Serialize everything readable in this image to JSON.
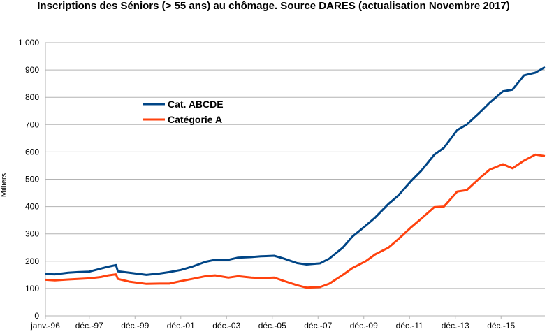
{
  "chart_data": {
    "type": "line",
    "title": "Inscriptions des Séniors (> 55 ans) au chômage. Source DARES (actualisation Novembre 2017)",
    "xlabel": "",
    "ylabel": "Milliers",
    "ylim": [
      0,
      1000
    ],
    "yticks": [
      "0",
      "100",
      "200",
      "300",
      "400",
      "500",
      "600",
      "700",
      "800",
      "900",
      "1 000"
    ],
    "yvalues": [
      0,
      100,
      200,
      300,
      400,
      500,
      600,
      700,
      800,
      900,
      1000
    ],
    "xlim": [
      "1996-01",
      "2017-11"
    ],
    "xticks": [
      {
        "label": "janv.-96",
        "date": "1996-01"
      },
      {
        "label": "déc.-97",
        "date": "1997-12"
      },
      {
        "label": "déc.-99",
        "date": "1999-12"
      },
      {
        "label": "déc.-01",
        "date": "2001-12"
      },
      {
        "label": "déc.-03",
        "date": "2003-12"
      },
      {
        "label": "déc.-05",
        "date": "2005-12"
      },
      {
        "label": "déc.-07",
        "date": "2007-12"
      },
      {
        "label": "déc.-09",
        "date": "2009-12"
      },
      {
        "label": "déc.-11",
        "date": "2011-12"
      },
      {
        "label": "déc.-13",
        "date": "2013-12"
      },
      {
        "label": "déc.-15",
        "date": "2015-12"
      }
    ],
    "grid": "horizontal",
    "legend_position": "upper-left inside",
    "series": [
      {
        "name": "Cat. ABCDE",
        "color": "#004586",
        "points": [
          [
            "1996-01",
            153
          ],
          [
            "1996-06",
            152
          ],
          [
            "1997-01",
            158
          ],
          [
            "1997-06",
            160
          ],
          [
            "1997-12",
            162
          ],
          [
            "1998-06",
            173
          ],
          [
            "1998-10",
            180
          ],
          [
            "1999-02",
            186
          ],
          [
            "1999-03",
            163
          ],
          [
            "1999-09",
            158
          ],
          [
            "2000-06",
            150
          ],
          [
            "2001-01",
            155
          ],
          [
            "2001-06",
            160
          ],
          [
            "2001-12",
            168
          ],
          [
            "2002-06",
            180
          ],
          [
            "2003-01",
            198
          ],
          [
            "2003-06",
            205
          ],
          [
            "2004-01",
            205
          ],
          [
            "2004-06",
            213
          ],
          [
            "2005-01",
            215
          ],
          [
            "2005-06",
            218
          ],
          [
            "2006-01",
            220
          ],
          [
            "2006-06",
            210
          ],
          [
            "2007-01",
            193
          ],
          [
            "2007-06",
            188
          ],
          [
            "2008-01",
            192
          ],
          [
            "2008-06",
            210
          ],
          [
            "2009-01",
            250
          ],
          [
            "2009-06",
            290
          ],
          [
            "2010-01",
            330
          ],
          [
            "2010-06",
            360
          ],
          [
            "2011-01",
            410
          ],
          [
            "2011-06",
            440
          ],
          [
            "2012-01",
            495
          ],
          [
            "2012-06",
            530
          ],
          [
            "2013-01",
            590
          ],
          [
            "2013-06",
            615
          ],
          [
            "2014-01",
            680
          ],
          [
            "2014-06",
            700
          ],
          [
            "2015-01",
            745
          ],
          [
            "2015-06",
            780
          ],
          [
            "2016-01",
            822
          ],
          [
            "2016-06",
            828
          ],
          [
            "2016-12",
            880
          ],
          [
            "2017-06",
            890
          ],
          [
            "2017-11",
            910
          ]
        ]
      },
      {
        "name": "Catégorie A",
        "color": "#ff420e",
        "points": [
          [
            "1996-01",
            132
          ],
          [
            "1996-06",
            130
          ],
          [
            "1997-01",
            133
          ],
          [
            "1997-06",
            135
          ],
          [
            "1997-12",
            137
          ],
          [
            "1998-06",
            142
          ],
          [
            "1998-10",
            148
          ],
          [
            "1999-02",
            152
          ],
          [
            "1999-03",
            135
          ],
          [
            "1999-09",
            125
          ],
          [
            "2000-06",
            117
          ],
          [
            "2001-01",
            118
          ],
          [
            "2001-06",
            118
          ],
          [
            "2001-12",
            127
          ],
          [
            "2002-06",
            135
          ],
          [
            "2003-01",
            145
          ],
          [
            "2003-06",
            148
          ],
          [
            "2004-01",
            140
          ],
          [
            "2004-06",
            145
          ],
          [
            "2005-01",
            140
          ],
          [
            "2005-06",
            138
          ],
          [
            "2006-01",
            140
          ],
          [
            "2006-06",
            128
          ],
          [
            "2007-01",
            112
          ],
          [
            "2007-06",
            103
          ],
          [
            "2008-01",
            105
          ],
          [
            "2008-06",
            118
          ],
          [
            "2009-01",
            150
          ],
          [
            "2009-06",
            175
          ],
          [
            "2010-01",
            200
          ],
          [
            "2010-06",
            225
          ],
          [
            "2011-01",
            250
          ],
          [
            "2011-06",
            280
          ],
          [
            "2012-01",
            325
          ],
          [
            "2012-06",
            355
          ],
          [
            "2013-01",
            398
          ],
          [
            "2013-06",
            400
          ],
          [
            "2014-01",
            455
          ],
          [
            "2014-06",
            460
          ],
          [
            "2015-01",
            505
          ],
          [
            "2015-06",
            535
          ],
          [
            "2016-01",
            555
          ],
          [
            "2016-06",
            540
          ],
          [
            "2016-12",
            568
          ],
          [
            "2017-06",
            590
          ],
          [
            "2017-11",
            585
          ]
        ]
      }
    ]
  }
}
